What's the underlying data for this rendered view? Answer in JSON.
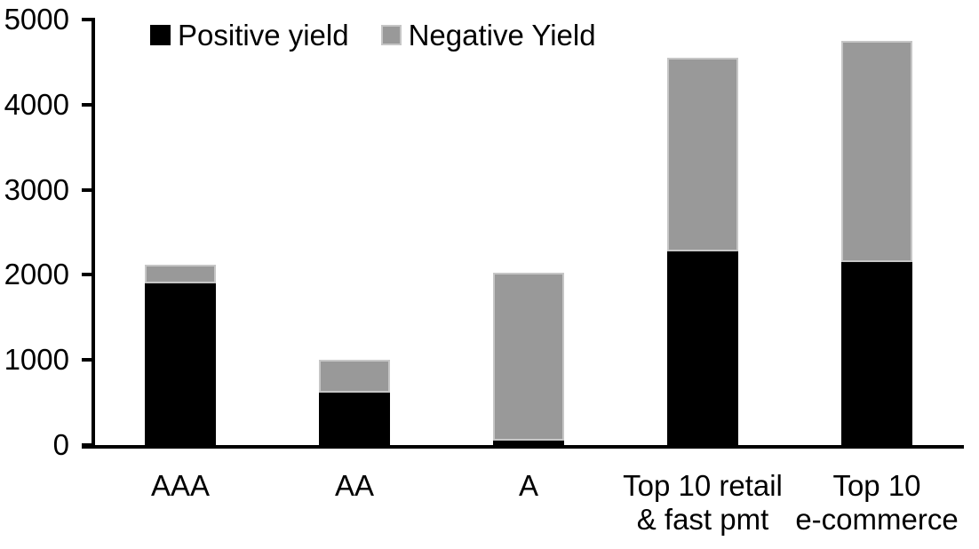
{
  "chart_data": {
    "type": "bar",
    "stacked": true,
    "title": "",
    "xlabel": "",
    "ylabel": "",
    "categories": [
      "AAA",
      "AA",
      "A",
      "Top 10 retail\n& fast pmt",
      "Top 10\ne-commerce"
    ],
    "series": [
      {
        "name": "Positive yield",
        "color": "#000000",
        "values": [
          1900,
          620,
          50,
          2280,
          2150
        ]
      },
      {
        "name": "Negative Yield",
        "color": "#999999",
        "values": [
          220,
          380,
          1980,
          2270,
          2600
        ]
      }
    ],
    "ylim": [
      0,
      5000
    ],
    "yticks": [
      0,
      1000,
      2000,
      3000,
      4000,
      5000
    ],
    "grid": false,
    "legend_position": "top"
  },
  "colors": {
    "axis": "#000000",
    "background": "#ffffff",
    "positive_bar": "#000000",
    "negative_bar": "#999999",
    "negative_bar_border": "#c6c6c6"
  }
}
